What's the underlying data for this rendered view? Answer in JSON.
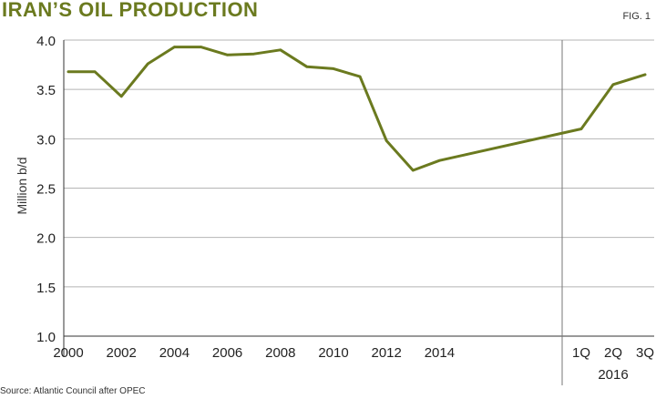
{
  "header": {
    "title": "IRAN’S OIL PRODUCTION",
    "fig_label": "FIG. 1"
  },
  "footer": {
    "source": "Source: Atlantic Council after OPEC"
  },
  "chart_data": {
    "type": "line",
    "title": "IRAN’S OIL PRODUCTION",
    "ylabel": "Million b/d",
    "xlabel": "",
    "ylim": [
      1.0,
      4.0
    ],
    "y_ticks": [
      "1.0",
      "1.5",
      "2.0",
      "2.5",
      "3.0",
      "3.5",
      "4.0"
    ],
    "annual_tick_labels": [
      "2000",
      "2002",
      "2004",
      "2006",
      "2008",
      "2010",
      "2012",
      "2014"
    ],
    "quarter_tick_labels": [
      "1Q",
      "2Q",
      "3Q"
    ],
    "quarter_group_label": "2016",
    "grid": "horizontal",
    "line_color": "#6b7a1f",
    "series": [
      {
        "points": [
          {
            "x": "2000",
            "y": 3.68
          },
          {
            "x": "2001",
            "y": 3.68
          },
          {
            "x": "2002",
            "y": 3.43
          },
          {
            "x": "2003",
            "y": 3.76
          },
          {
            "x": "2004",
            "y": 3.93
          },
          {
            "x": "2005",
            "y": 3.93
          },
          {
            "x": "2006",
            "y": 3.85
          },
          {
            "x": "2007",
            "y": 3.86
          },
          {
            "x": "2008",
            "y": 3.9
          },
          {
            "x": "2009",
            "y": 3.73
          },
          {
            "x": "2010",
            "y": 3.71
          },
          {
            "x": "2011",
            "y": 3.63
          },
          {
            "x": "2012",
            "y": 2.98
          },
          {
            "x": "2013",
            "y": 2.68
          },
          {
            "x": "2014",
            "y": 2.78
          },
          {
            "x": "2015",
            "y": 2.84
          },
          {
            "x": "2016 1Q",
            "y": 3.1
          },
          {
            "x": "2016 2Q",
            "y": 3.55
          },
          {
            "x": "2016 3Q",
            "y": 3.65
          }
        ]
      }
    ]
  }
}
